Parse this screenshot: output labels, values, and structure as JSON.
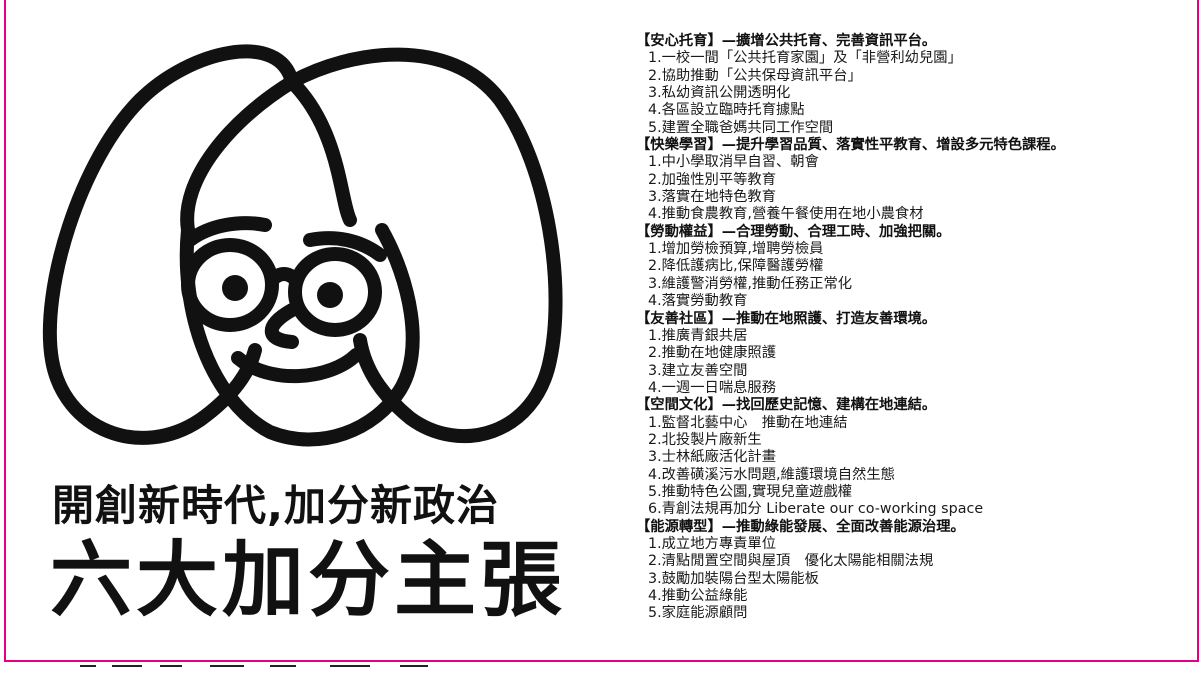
{
  "slogan": "開創新時代,加分新政治",
  "title": "六大加分主張",
  "colors": {
    "frame": "#e4007f",
    "ink": "#111111"
  },
  "illustration": {
    "icon": "cartoon-woman-face-with-glasses-icon"
  },
  "sections": [
    {
      "heading": "【安心托育】—擴增公共托育、完善資訊平台。",
      "items": [
        "1.一校一間「公共托育家園」及「非營利幼兒園」",
        "2.協助推動「公共保母資訊平台」",
        "3.私幼資訊公開透明化",
        "4.各區設立臨時托育據點",
        "5.建置全職爸媽共同工作空間"
      ]
    },
    {
      "heading": "【快樂學習】—提升學習品質、落實性平教育、增設多元特色課程。",
      "items": [
        "1.中小學取消早自習、朝會",
        "2.加強性別平等教育",
        "3.落實在地特色教育",
        "4.推動食農教育,營養午餐使用在地小農食材"
      ]
    },
    {
      "heading": "【勞動權益】—合理勞動、合理工時、加強把關。",
      "items": [
        "1.增加勞檢預算,增聘勞檢員",
        "2.降低護病比,保障醫護勞權",
        "3.維護警消勞權,推動任務正常化",
        "4.落實勞動教育"
      ]
    },
    {
      "heading": "【友善社區】—推動在地照護、打造友善環境。",
      "items": [
        "1.推廣青銀共居",
        "2.推動在地健康照護",
        "3.建立友善空間",
        "4.一週一日喘息服務"
      ]
    },
    {
      "heading": "【空間文化】—找回歷史記憶、建構在地連結。",
      "items": [
        "1.監督北藝中心　推動在地連結",
        "2.北投製片廠新生",
        "3.士林紙廠活化計畫",
        "4.改善磺溪污水問題,維護環境自然生態",
        "5.推動特色公園,實現兒童遊戲權",
        "6.青創法規再加分 Liberate our co-working space"
      ]
    },
    {
      "heading": "【能源轉型】—推動綠能發展、全面改善能源治理。",
      "items": [
        "1.成立地方專責單位",
        "2.清點閒置空間與屋頂　優化太陽能相關法規",
        "3.鼓勵加裝陽台型太陽能板",
        "4.推動公益綠能",
        "5.家庭能源顧問"
      ]
    }
  ]
}
